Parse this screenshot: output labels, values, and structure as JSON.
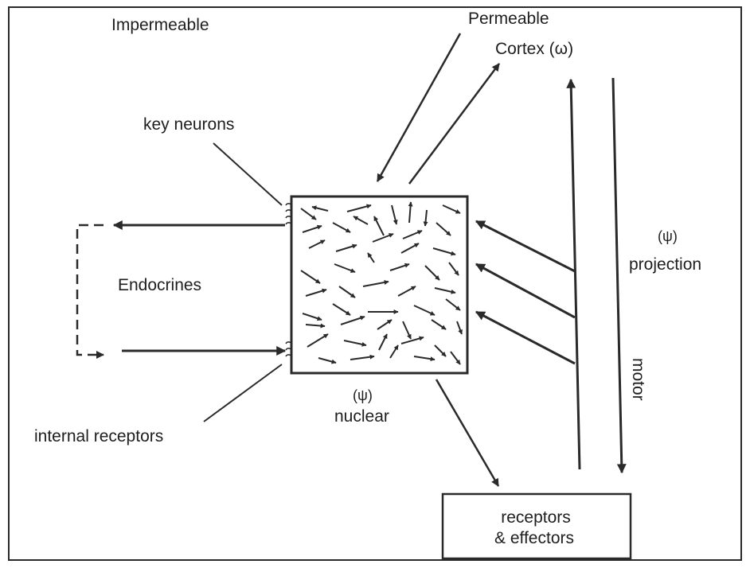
{
  "diagram": {
    "labels": {
      "impermeable": "Impermeable",
      "permeable": "Permeable",
      "cortex": "Cortex (ω)",
      "key_neurons": "key neurons",
      "endocrines": "Endocrines",
      "psi_nuclear": "(ψ)",
      "nuclear": "nuclear",
      "internal_receptors": "internal receptors",
      "psi_projection": "(ψ)",
      "projection": "projection",
      "motor": "motor",
      "receptors_line1": "receptors",
      "receptors_line2": "& effectors"
    },
    "colors": {
      "ink": "#2a2a2a",
      "paper": "#ffffff"
    }
  }
}
